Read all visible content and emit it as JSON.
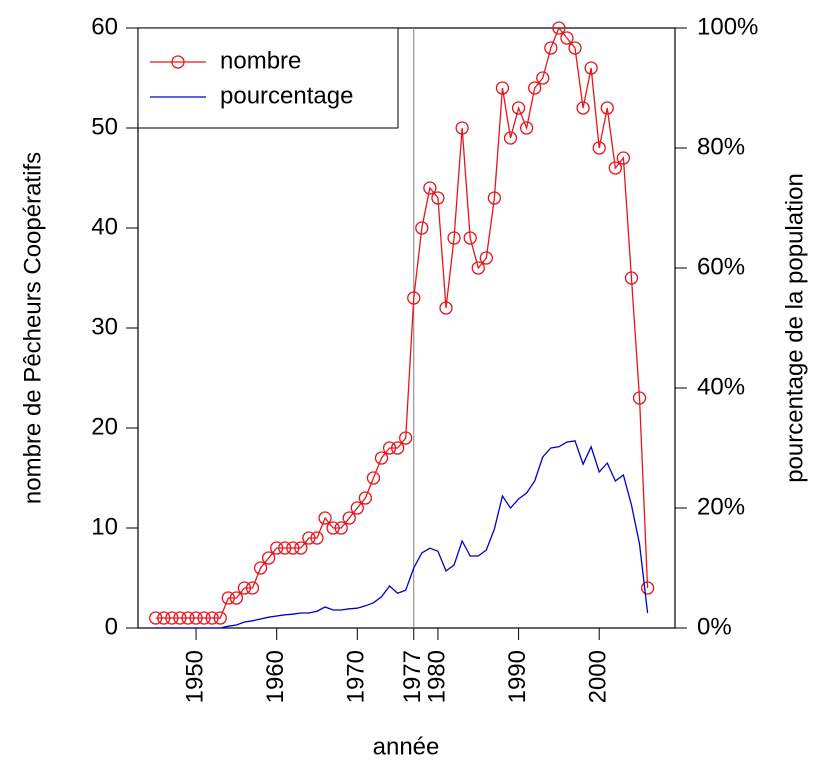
{
  "chart_data": {
    "type": "line",
    "x": [
      1945,
      1946,
      1947,
      1948,
      1949,
      1950,
      1951,
      1952,
      1953,
      1954,
      1955,
      1956,
      1957,
      1958,
      1959,
      1960,
      1961,
      1962,
      1963,
      1964,
      1965,
      1966,
      1967,
      1968,
      1969,
      1970,
      1971,
      1972,
      1973,
      1974,
      1975,
      1976,
      1977,
      1978,
      1979,
      1980,
      1981,
      1982,
      1983,
      1984,
      1985,
      1986,
      1987,
      1988,
      1989,
      1990,
      1991,
      1992,
      1993,
      1994,
      1995,
      1996,
      1997,
      1998,
      1999,
      2000,
      2001,
      2002,
      2003,
      2004,
      2005,
      2006
    ],
    "series": [
      {
        "name": "nombre",
        "color": "#e8141c",
        "marker": "circle",
        "values": [
          1,
          1,
          1,
          1,
          1,
          1,
          1,
          1,
          1,
          3,
          3,
          4,
          4,
          6,
          7,
          8,
          8,
          8,
          8,
          9,
          9,
          11,
          10,
          10,
          11,
          12,
          13,
          15,
          17,
          18,
          18,
          19,
          33,
          40,
          44,
          43,
          32,
          39,
          50,
          39,
          36,
          37,
          43,
          54,
          49,
          52,
          50,
          54,
          55,
          58,
          60,
          59,
          58,
          52,
          56,
          48,
          52,
          46,
          47,
          35,
          23,
          4
        ]
      },
      {
        "name": "pourcentage",
        "color": "#0000cc",
        "axis": "y2",
        "values": [
          0,
          0,
          0,
          0,
          0,
          0,
          0,
          0,
          0,
          0.3,
          0.5,
          1,
          1.2,
          1.5,
          1.8,
          2,
          2.2,
          2.3,
          2.5,
          2.5,
          2.8,
          3.5,
          3,
          3,
          3.2,
          3.3,
          3.7,
          4.2,
          5.2,
          7,
          5.8,
          6.3,
          10,
          12.5,
          13.3,
          12.8,
          9.5,
          10.5,
          14.5,
          12,
          12,
          13,
          16.5,
          22,
          20,
          21.5,
          22.5,
          24.5,
          28.5,
          30,
          30.2,
          31,
          31.2,
          27.3,
          30.2,
          26,
          27.5,
          24.5,
          25.5,
          20.5,
          14,
          2.5
        ]
      }
    ],
    "xlabel": "année",
    "ylabel": "nombre de Pêcheurs Coopératifs",
    "y2label": "pourcentage de la population",
    "xlim": [
      1942.8,
      2009.4
    ],
    "xticks": [
      1950,
      1960,
      1970,
      1977,
      1980,
      1990,
      2000
    ],
    "ylim": [
      0,
      60
    ],
    "yticks": [
      0,
      10,
      20,
      30,
      40,
      50,
      60
    ],
    "y2lim": [
      0,
      100
    ],
    "y2ticks": [
      {
        "value": 0,
        "label": "0%"
      },
      {
        "value": 20,
        "label": "20%"
      },
      {
        "value": 40,
        "label": "40%"
      },
      {
        "value": 60,
        "label": "60%"
      },
      {
        "value": 80,
        "label": "80%"
      },
      {
        "value": 100,
        "label": "100%"
      }
    ],
    "vline": 1977,
    "vline_color": "#808080",
    "legend": "top-left"
  }
}
